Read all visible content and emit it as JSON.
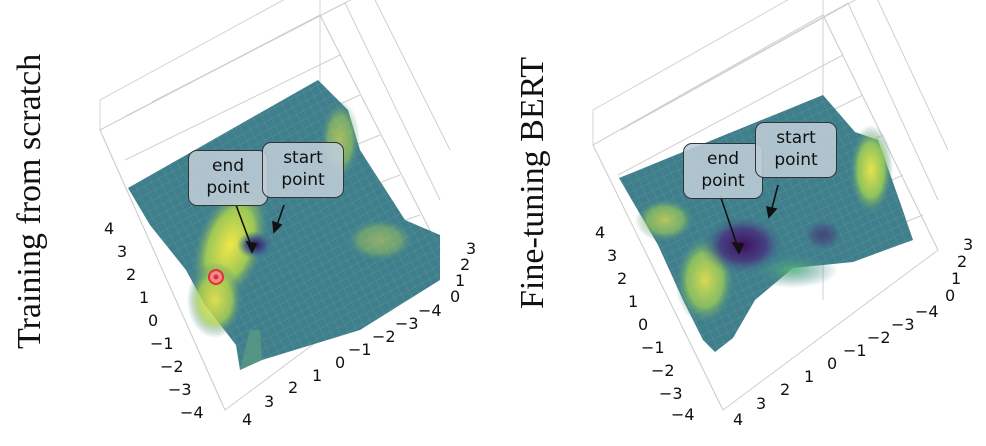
{
  "panels": [
    {
      "label": "Training from scratch",
      "callouts": {
        "end": "end\npoint",
        "start": "start\npoint"
      },
      "ticks_left": [
        "4",
        "3",
        "2",
        "1",
        "0",
        "−1",
        "−2",
        "−3",
        "−4"
      ],
      "ticks_bottom": [
        "4",
        "3",
        "2",
        "1",
        "0",
        "−1",
        "−2",
        "−3",
        "−4"
      ],
      "ticks_z": [
        "3",
        "2",
        "1",
        "0"
      ]
    },
    {
      "label": "Fine-tuning BERT",
      "callouts": {
        "end": "end\npoint",
        "start": "start\npoint"
      },
      "ticks_left": [
        "4",
        "3",
        "2",
        "1",
        "0",
        "−1",
        "−2",
        "−3",
        "−4"
      ],
      "ticks_bottom": [
        "4",
        "3",
        "2",
        "1",
        "0",
        "−1",
        "−2",
        "−3",
        "−4"
      ],
      "ticks_z": [
        "3",
        "2",
        "1",
        "0"
      ]
    }
  ],
  "colors": {
    "surface_base": "#3f7f8c",
    "surface_high": "#e8e24a",
    "surface_low": "#3d0f5c",
    "grid": "#cfcfcf",
    "marker": "#e0303a"
  }
}
